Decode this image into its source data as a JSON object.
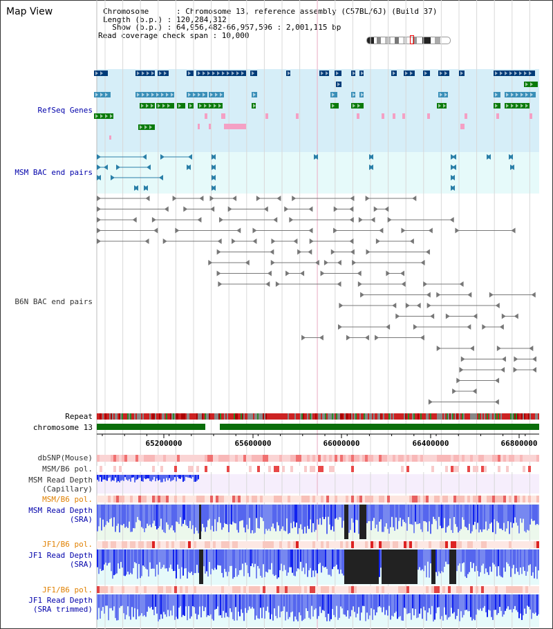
{
  "view_title": "Map View",
  "info": {
    "chromosome_line": "Chromosome      : Chromosome 13, reference assembly (C57BL/6J) (Build 37)",
    "length_line": "Length (b.p.) : 120,284,312",
    "show_line": "  Show (b.p.) : 64,956,482-66,957,596 : 2,001,115 bp",
    "span_line": "Read coverage check span : 10,000"
  },
  "ideogram": {
    "marker": "chromosome-position-marker"
  },
  "tracks": {
    "refseq": "RefSeq Genes",
    "msm_bac": "MSM BAC end pairs",
    "b6n_bac": "B6N BAC end pairs",
    "repeat": "Repeat",
    "chromosome": "chromosome 13",
    "dbsnp": "dbSNP(Mouse)",
    "msm_b6_pol_1": "MSM/B6 pol.",
    "msm_depth_cap_1": "MSM Read Depth",
    "msm_depth_cap_2": "(Capillary)",
    "msm_b6_pol_2": "MSM/B6 pol.",
    "msm_depth_sra_1": "MSM Read Depth",
    "msm_depth_sra_2": "(SRA)",
    "jf1_b6_pol_1": "JF1/B6 pol.",
    "jf1_depth_sra_1": "JF1 Read Depth",
    "jf1_depth_sra_2": "(SRA)",
    "jf1_b6_pol_2": "JF1/B6 pol.",
    "jf1_depth_trim_1": "JF1 Read Depth",
    "jf1_depth_trim_2": "(SRA trimmed)"
  },
  "axis": {
    "ticks": [
      "65200000",
      "65600000",
      "66000000",
      "66400000",
      "66800000"
    ]
  },
  "colors": {
    "label_blue": "#0000aa",
    "label_orange": "#e08000",
    "refseq_bg": "#d6eef8",
    "msm_bg": "#e6fafa",
    "gene_navy": "#003b78",
    "gene_teal": "#3a8fb8",
    "gene_green": "#0a7a0a",
    "gene_pink": "#f4a0c4",
    "bac_teal": "#2a7fa8",
    "bac_gray": "#777777",
    "chrom_green": "#0a6e0a",
    "depth_blue": "#2233ee"
  }
}
